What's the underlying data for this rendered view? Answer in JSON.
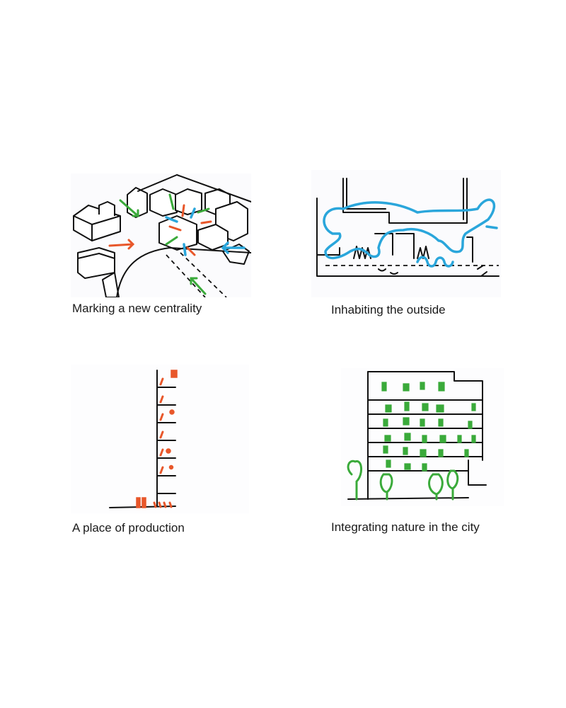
{
  "panels": [
    {
      "caption": "Marking a new centrality",
      "accent_colors": [
        "#e8572a",
        "#3aaa3a",
        "#2aa6db"
      ]
    },
    {
      "caption": "Inhabiting the outside",
      "accent_colors": [
        "#2aa6db"
      ]
    },
    {
      "caption": "A place of production",
      "accent_colors": [
        "#e8572a"
      ]
    },
    {
      "caption": "Integrating nature in the city",
      "accent_colors": [
        "#3aaa3a"
      ]
    }
  ]
}
